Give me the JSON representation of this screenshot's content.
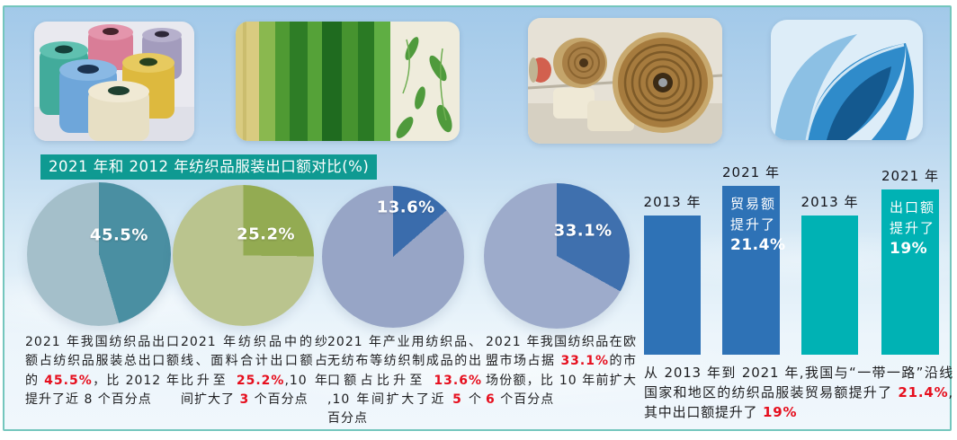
{
  "header": {
    "title": "2021 年和 2012 年纺织品服装出口额对比(%)"
  },
  "photos": [
    {
      "name": "yarn-spools"
    },
    {
      "name": "green-curtains"
    },
    {
      "name": "brown-fabric-rolls"
    },
    {
      "name": "blue-fabric-rolls"
    }
  ],
  "chart_data": [
    {
      "type": "pie",
      "label": "45.5%",
      "values": [
        45.5,
        54.5
      ],
      "colors": {
        "slice": "#4a8fa2",
        "rest": "#a4bfca"
      }
    },
    {
      "type": "pie",
      "label": "25.2%",
      "values": [
        25.2,
        74.8
      ],
      "colors": {
        "slice": "#93ab52",
        "rest": "#bac48e"
      }
    },
    {
      "type": "pie",
      "label": "13.6%",
      "values": [
        13.6,
        86.4
      ],
      "colors": {
        "slice": "#3a6cac",
        "rest": "#97a5c6"
      }
    },
    {
      "type": "pie",
      "label": "33.1%",
      "values": [
        33.1,
        66.9
      ],
      "colors": {
        "slice": "#3f70ae",
        "rest": "#9dabcb"
      }
    },
    {
      "type": "bar",
      "categories": [
        "2013 年",
        "2021 年"
      ],
      "values": [
        100,
        121.4
      ],
      "color": "#2e72b6",
      "note_lines": [
        "贸易额",
        "提升了",
        "21.4%"
      ]
    },
    {
      "type": "bar",
      "categories": [
        "2013 年",
        "2021 年"
      ],
      "values": [
        100,
        119
      ],
      "color": "#00b2b4",
      "note_lines": [
        "出口额",
        "提升了",
        "19%"
      ]
    }
  ],
  "captions": [
    {
      "segments": [
        {
          "t": "2021 年我国纺织品出口额占纺织品服装总出口额的 "
        },
        {
          "t": "45.5%",
          "red": true
        },
        {
          "t": "，比 2012 年提升了近 8 个百分点"
        }
      ]
    },
    {
      "segments": [
        {
          "t": "2021 年纺织品中的纱线、面料合计出口额占比升至 "
        },
        {
          "t": "25.2%",
          "red": true
        },
        {
          "t": ",10 年间扩大了 "
        },
        {
          "t": "3",
          "red": true
        },
        {
          "t": " 个百分点"
        }
      ]
    },
    {
      "segments": [
        {
          "t": "2021 年产业用纺织品、无纺布等纺织制成品的出口额占比升至 "
        },
        {
          "t": "13.6%",
          "red": true
        },
        {
          "t": " ,10 年间扩大了近 "
        },
        {
          "t": "5",
          "red": true
        },
        {
          "t": " 个百分点"
        }
      ]
    },
    {
      "segments": [
        {
          "t": "2021 年我国纺织品在欧盟市场占据 "
        },
        {
          "t": "33.1%",
          "red": true
        },
        {
          "t": "的市场份额，比 10 年前扩大 "
        },
        {
          "t": "6",
          "red": true
        },
        {
          "t": " 个百分点"
        }
      ]
    }
  ],
  "footer_note": {
    "segments": [
      {
        "t": "从 2013 年到 2021 年,我国与“一带一路”沿线国家和地区的纺织品服装贸易额提升了 "
      },
      {
        "t": "21.4%",
        "red": true
      },
      {
        "t": ",其中出口额提升了 "
      },
      {
        "t": "19%",
        "red": true
      }
    ]
  }
}
